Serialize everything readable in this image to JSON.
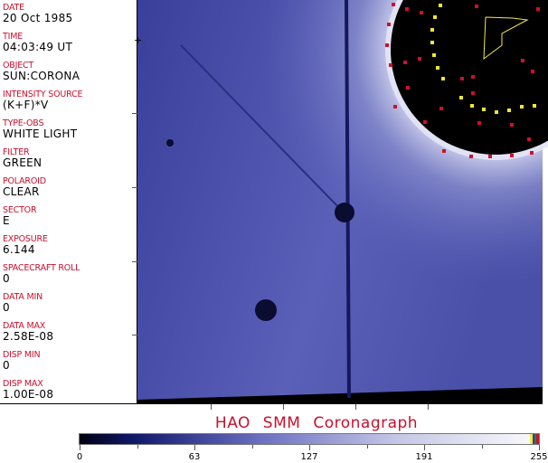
{
  "metadata": [
    {
      "label": "DATE",
      "value": "20 Oct 1985"
    },
    {
      "label": "TIME",
      "value": "04:03:49 UT"
    },
    {
      "label": "OBJECT",
      "value": "SUN:CORONA"
    },
    {
      "label": "INTENSITY SOURCE",
      "value": "(K+F)*V"
    },
    {
      "label": "TYPE-OBS",
      "value": "WHITE LIGHT"
    },
    {
      "label": "FILTER",
      "value": "GREEN"
    },
    {
      "label": "POLAROID",
      "value": "CLEAR"
    },
    {
      "label": "SECTOR",
      "value": "E"
    },
    {
      "label": "EXPOSURE",
      "value": "6.144"
    },
    {
      "label": "SPACECRAFT ROLL",
      "value": "0"
    },
    {
      "label": "DATA MIN",
      "value": "0"
    },
    {
      "label": "DATA MAX",
      "value": "2.58E-08"
    },
    {
      "label": "DISP MIN",
      "value": "0"
    },
    {
      "label": "DISP MAX",
      "value": "1.00E-08"
    }
  ],
  "title": "HAO  SMM Coronagraph",
  "colorbar": {
    "ticks": [
      "0",
      "63",
      "127",
      "191",
      "255"
    ],
    "colors": {
      "low": "#000010",
      "mid": "#5055b0",
      "high": "#f4f4f8",
      "label_red": "#c8102e"
    }
  }
}
